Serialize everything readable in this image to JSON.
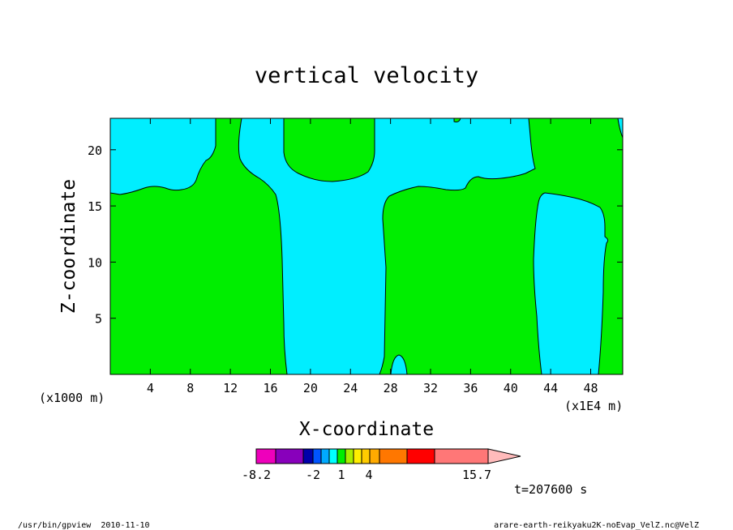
{
  "chart_data": {
    "type": "heatmap",
    "title": "vertical velocity",
    "xlabel": "X-coordinate",
    "ylabel": "Z-coordinate",
    "x_unit_left": "(x1000 m)",
    "x_unit_right": "(x1E4 m)",
    "xlim": [
      0,
      51.2
    ],
    "ylim": [
      0,
      22.8
    ],
    "x_ticks": [
      4,
      8,
      12,
      16,
      20,
      24,
      28,
      32,
      36,
      40,
      44,
      48
    ],
    "y_ticks": [
      5,
      10,
      15,
      20
    ],
    "colors": {
      "positive_region": "#00ee00",
      "negative_region": "#00eeff"
    },
    "colorbar": {
      "colors": [
        "#ee00bb",
        "#8800bb",
        "#0000aa",
        "#0055ff",
        "#00aaff",
        "#00ffff",
        "#00ee00",
        "#aaee00",
        "#ffee00",
        "#ffcc00",
        "#ffaa00",
        "#ff7700",
        "#ff0000",
        "#ff7777",
        "#ffbbbb"
      ],
      "labels": [
        "-8.2",
        "-2",
        "1",
        "4",
        "15.7"
      ]
    },
    "time_label": "t=207600 s"
  },
  "footer": {
    "left": "/usr/bin/gpview  2010-11-10",
    "right": "arare-earth-reikyaku2K-noEvap_VelZ.nc@VelZ"
  }
}
